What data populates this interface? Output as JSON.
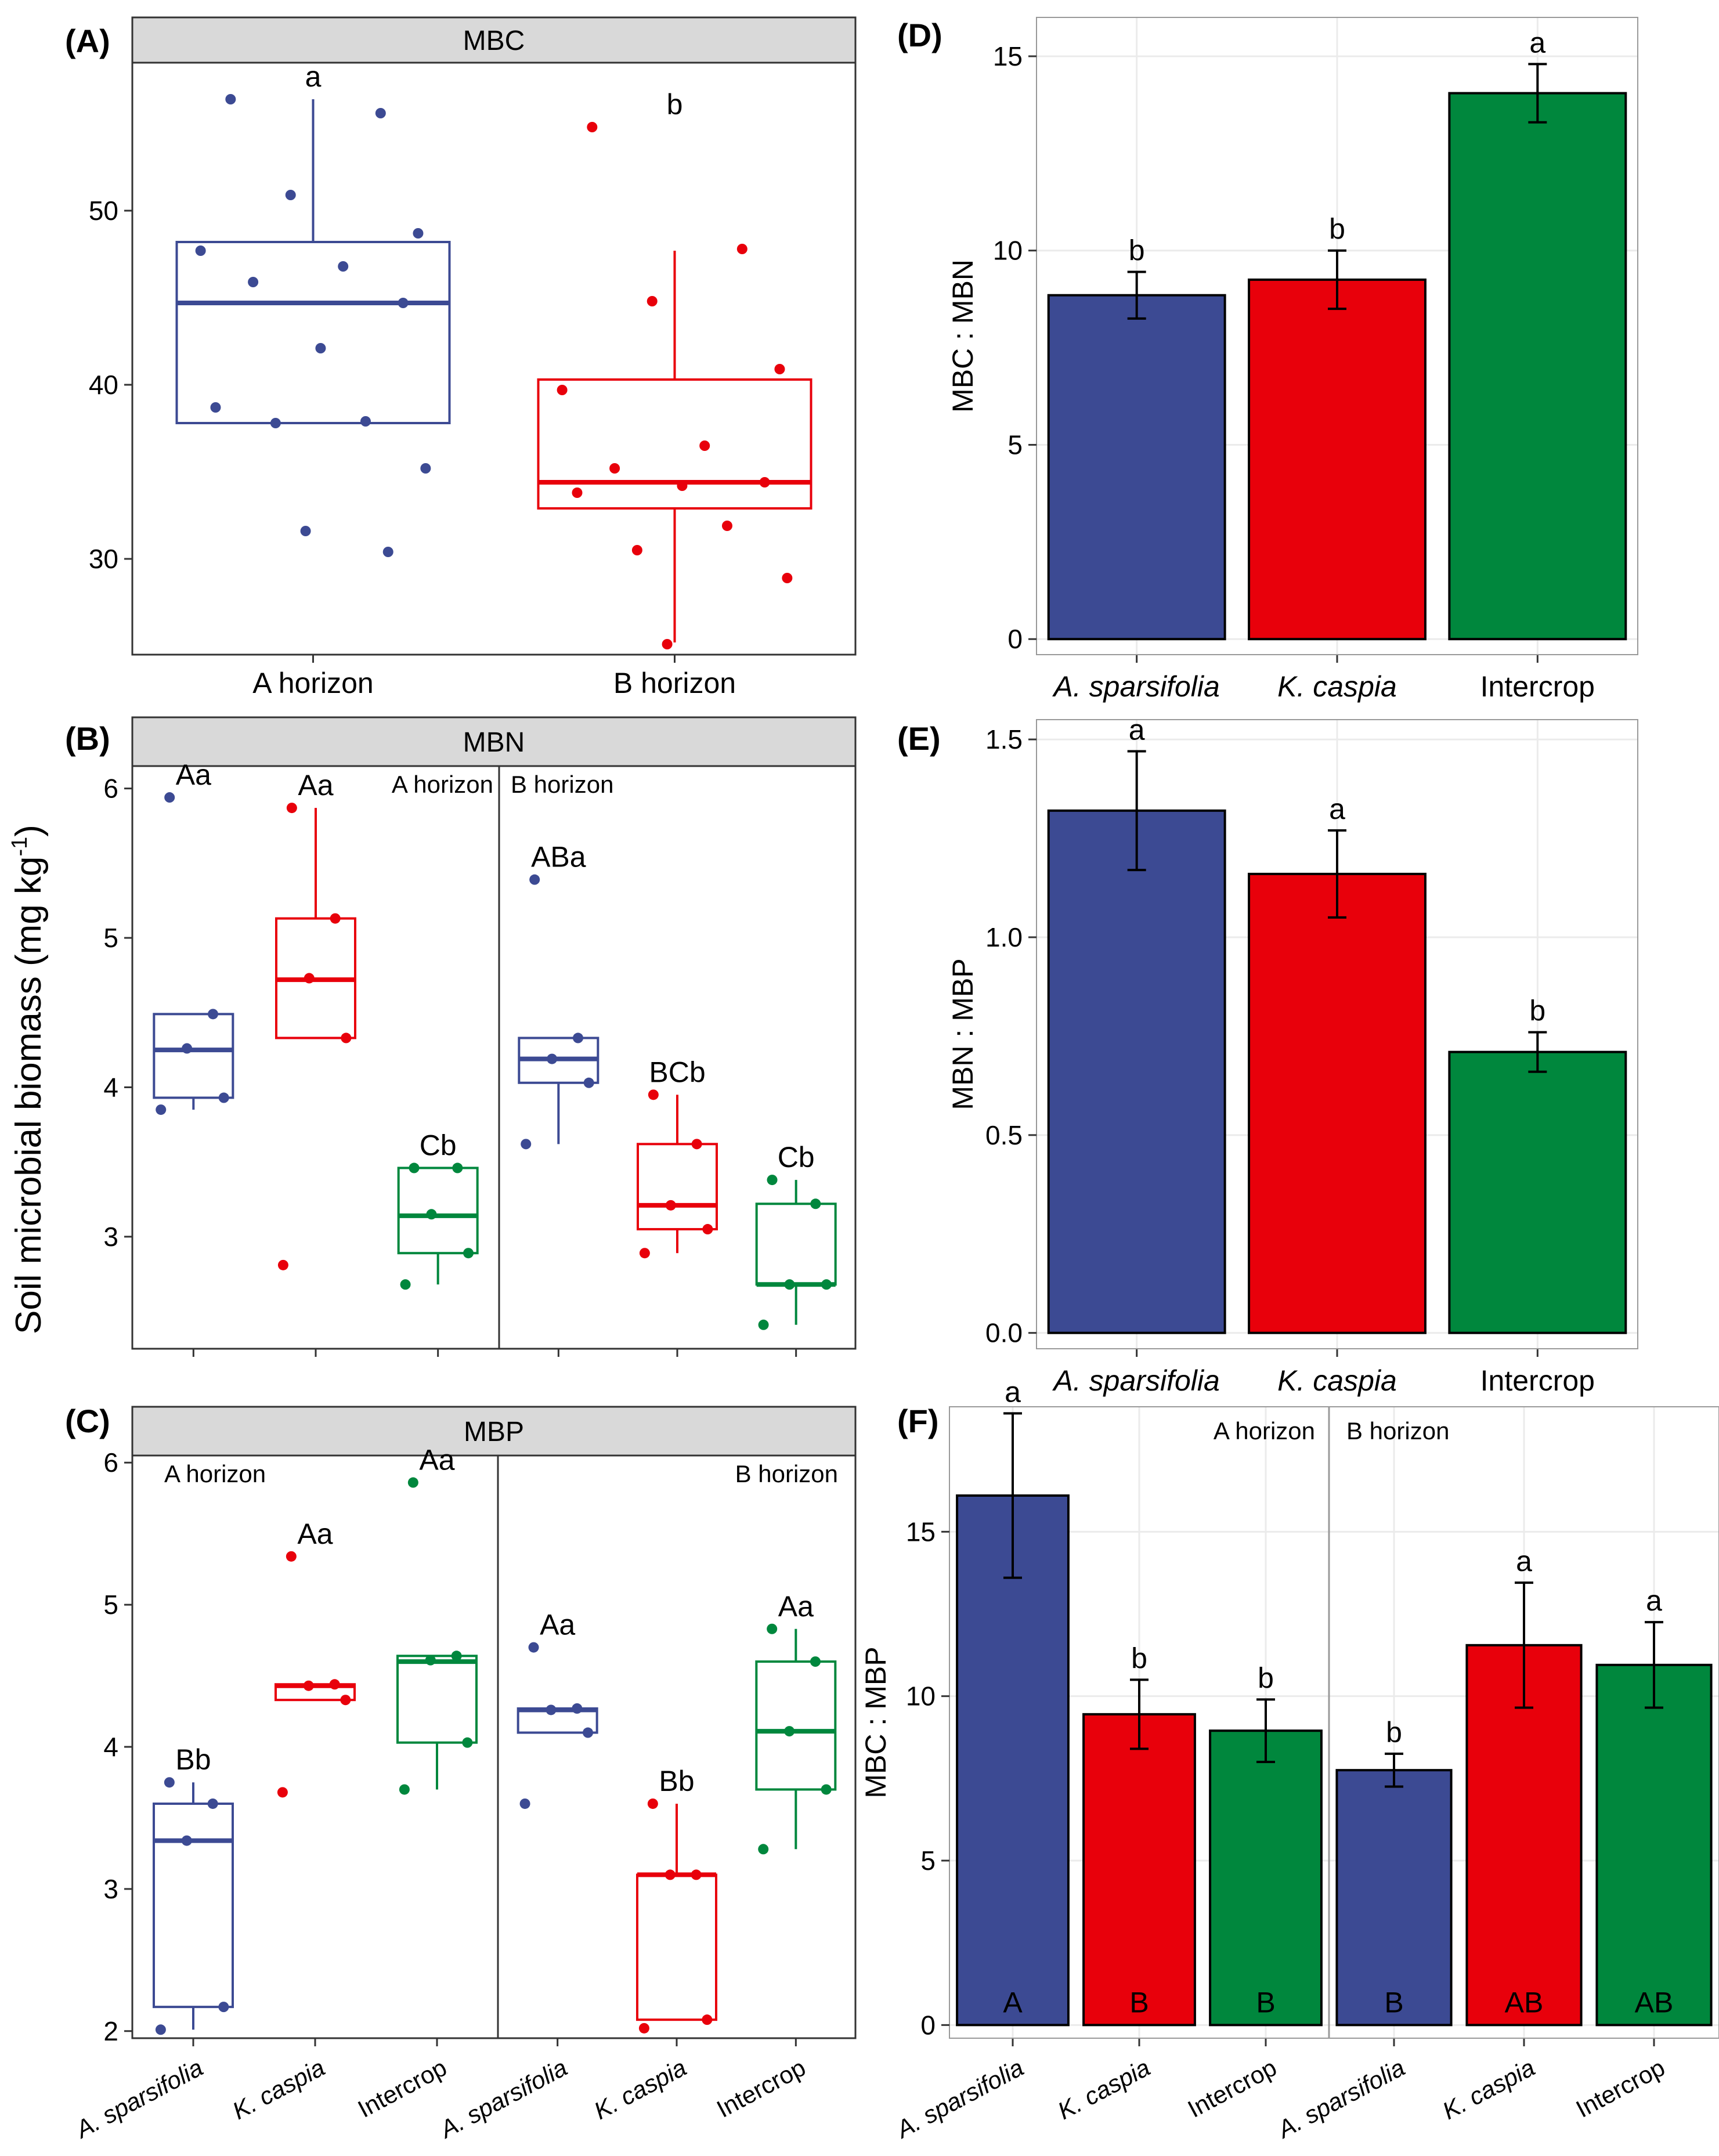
{
  "colors": {
    "blue": "#3C4A93",
    "red": "#E8000B",
    "green": "#00873D",
    "strip": "#D9D9D9",
    "grid": "#EBEBEB"
  },
  "shared_ylabel_main": "Soil microbial biomass (mg kg",
  "shared_ylabel_sup": "-1",
  "shared_ylabel_end": ")",
  "chart_data": [
    {
      "id": "A",
      "panel_tag": "(A)",
      "type": "box",
      "strip": "MBC",
      "ylim": [
        24.5,
        58.5
      ],
      "yticks": [
        30,
        40,
        50
      ],
      "categories": [
        "A horizon",
        "B horizon"
      ],
      "groups": [
        {
          "name": "A horizon",
          "color": "blue",
          "box": {
            "lower": 37.8,
            "q1": 37.8,
            "median": 44.7,
            "q3": 48.2,
            "upper": 56.4
          },
          "points": [
            56.4,
            55.6,
            50.9,
            48.7,
            47.7,
            46.8,
            45.9,
            44.7,
            42.1,
            38.7,
            37.9,
            37.8,
            35.2,
            31.6,
            30.4
          ],
          "label": "a"
        },
        {
          "name": "B horizon",
          "color": "red",
          "box": {
            "lower": 25.2,
            "q1": 32.9,
            "median": 34.4,
            "q3": 40.3,
            "upper": 47.7
          },
          "points": [
            54.8,
            47.8,
            44.8,
            40.9,
            39.7,
            36.5,
            35.2,
            34.4,
            34.2,
            33.8,
            31.9,
            30.5,
            28.9,
            25.1
          ],
          "label": "b"
        }
      ]
    },
    {
      "id": "B",
      "panel_tag": "(B)",
      "type": "box",
      "strip": "MBN",
      "ylim": [
        2.25,
        6.15
      ],
      "yticks": [
        3,
        4,
        5,
        6
      ],
      "facets": [
        {
          "label": "A horizon",
          "categories": [
            "A. sparsifolia",
            "K. caspia",
            "Intercrop"
          ],
          "groups": [
            {
              "name": "A. sparsifolia",
              "color": "blue",
              "box": {
                "lower": 3.85,
                "q1": 3.93,
                "median": 4.25,
                "q3": 4.49,
                "upper": 4.49
              },
              "points": [
                5.94,
                4.49,
                4.26,
                3.93,
                3.85
              ],
              "label": "Aa"
            },
            {
              "name": "K. caspia",
              "color": "red",
              "box": {
                "lower": 4.33,
                "q1": 4.33,
                "median": 4.72,
                "q3": 5.13,
                "upper": 5.87
              },
              "points": [
                5.87,
                5.13,
                4.73,
                4.33,
                2.81
              ],
              "label": "Aa"
            },
            {
              "name": "Intercrop",
              "color": "green",
              "box": {
                "lower": 2.68,
                "q1": 2.89,
                "median": 3.14,
                "q3": 3.46,
                "upper": 3.46
              },
              "points": [
                3.46,
                3.46,
                3.15,
                2.89,
                2.68
              ],
              "label": "Cb"
            }
          ]
        },
        {
          "label": "B horizon",
          "categories": [
            "A. sparsifolia",
            "K. caspia",
            "Intercrop"
          ],
          "groups": [
            {
              "name": "A. sparsifolia",
              "color": "blue",
              "box": {
                "lower": 3.62,
                "q1": 4.03,
                "median": 4.19,
                "q3": 4.33,
                "upper": 4.33
              },
              "points": [
                5.39,
                4.33,
                4.19,
                4.03,
                3.62
              ],
              "label": "ABa"
            },
            {
              "name": "K. caspia",
              "color": "red",
              "box": {
                "lower": 2.89,
                "q1": 3.05,
                "median": 3.21,
                "q3": 3.62,
                "upper": 3.95
              },
              "points": [
                3.95,
                3.62,
                3.21,
                3.05,
                2.89
              ],
              "label": "BCb"
            },
            {
              "name": "Intercrop",
              "color": "green",
              "box": {
                "lower": 2.41,
                "q1": 2.68,
                "median": 2.68,
                "q3": 3.22,
                "upper": 3.38
              },
              "points": [
                3.38,
                3.22,
                2.68,
                2.68,
                2.41
              ],
              "label": "Cb"
            }
          ]
        }
      ]
    },
    {
      "id": "C",
      "panel_tag": "(C)",
      "type": "box",
      "strip": "MBP",
      "ylim": [
        1.95,
        6.05
      ],
      "yticks": [
        2,
        3,
        4,
        5,
        6
      ],
      "facets": [
        {
          "label": "A horizon",
          "categories": [
            "A. sparsifolia",
            "K. caspia",
            "Intercrop"
          ],
          "groups": [
            {
              "name": "A. sparsifolia",
              "color": "blue",
              "box": {
                "lower": 2.01,
                "q1": 2.17,
                "median": 3.34,
                "q3": 3.6,
                "upper": 3.75
              },
              "points": [
                3.75,
                3.6,
                3.34,
                2.17,
                2.01
              ],
              "label": "Bb"
            },
            {
              "name": "K. caspia",
              "color": "red",
              "box": {
                "lower": 4.33,
                "q1": 4.33,
                "median": 4.43,
                "q3": 4.44,
                "upper": 4.44
              },
              "points": [
                5.34,
                4.44,
                4.43,
                4.33,
                3.68
              ],
              "label": "Aa"
            },
            {
              "name": "Intercrop",
              "color": "green",
              "box": {
                "lower": 3.7,
                "q1": 4.03,
                "median": 4.6,
                "q3": 4.64,
                "upper": 4.64
              },
              "points": [
                5.86,
                4.64,
                4.61,
                4.03,
                3.7
              ],
              "label": "Aa"
            }
          ]
        },
        {
          "label": "B horizon",
          "categories": [
            "A. sparsifolia",
            "K. caspia",
            "Intercrop"
          ],
          "groups": [
            {
              "name": "A. sparsifolia",
              "color": "blue",
              "box": {
                "lower": 4.1,
                "q1": 4.1,
                "median": 4.26,
                "q3": 4.27,
                "upper": 4.27
              },
              "points": [
                4.7,
                4.27,
                4.26,
                4.1,
                3.6
              ],
              "label": "Aa"
            },
            {
              "name": "K. caspia",
              "color": "red",
              "box": {
                "lower": 2.08,
                "q1": 2.08,
                "median": 3.1,
                "q3": 3.1,
                "upper": 3.6
              },
              "points": [
                3.6,
                3.1,
                3.1,
                2.08,
                2.02
              ],
              "label": "Bb"
            },
            {
              "name": "Intercrop",
              "color": "green",
              "box": {
                "lower": 3.28,
                "q1": 3.7,
                "median": 4.11,
                "q3": 4.6,
                "upper": 4.83
              },
              "points": [
                4.83,
                4.6,
                4.11,
                3.7,
                3.28
              ],
              "label": "Aa"
            }
          ]
        }
      ]
    },
    {
      "id": "D",
      "panel_tag": "(D)",
      "type": "bar",
      "ylabel": "MBC : MBN",
      "ylim": [
        -0.4,
        16.0
      ],
      "yticks": [
        0,
        5,
        10,
        15
      ],
      "categories": [
        "A. sparsifolia",
        "K. caspia",
        "Intercrop"
      ],
      "values": [
        8.85,
        9.25,
        14.05
      ],
      "err": [
        0.6,
        0.75,
        0.75
      ],
      "colors": [
        "blue",
        "red",
        "green"
      ],
      "labels": [
        "b",
        "b",
        "a"
      ]
    },
    {
      "id": "E",
      "panel_tag": "(E)",
      "type": "bar",
      "ylabel": "MBN : MBP",
      "ylim": [
        -0.04,
        1.55
      ],
      "yticks": [
        0.0,
        0.5,
        1.0,
        1.5
      ],
      "ytick_labels": [
        "0.0",
        "0.5",
        "1.0",
        "1.5"
      ],
      "categories": [
        "A. sparsifolia",
        "K. caspia",
        "Intercrop"
      ],
      "values": [
        1.32,
        1.16,
        0.71
      ],
      "err": [
        0.15,
        0.11,
        0.05
      ],
      "colors": [
        "blue",
        "red",
        "green"
      ],
      "labels": [
        "a",
        "a",
        "b"
      ]
    },
    {
      "id": "F",
      "panel_tag": "(F)",
      "type": "bar",
      "ylabel": "MBC : MBP",
      "ylim": [
        -0.4,
        18.8
      ],
      "yticks": [
        0,
        5,
        10,
        15
      ],
      "facets": [
        {
          "label": "A horizon",
          "categories": [
            "A. sparsifolia",
            "K. caspia",
            "Intercrop"
          ],
          "values": [
            16.1,
            9.45,
            8.95
          ],
          "err": [
            2.5,
            1.05,
            0.95
          ],
          "colors": [
            "blue",
            "red",
            "green"
          ],
          "labels": [
            "a",
            "b",
            "b"
          ],
          "inner_labels": [
            "A",
            "B",
            "B"
          ]
        },
        {
          "label": "B horizon",
          "categories": [
            "A. sparsifolia",
            "K. caspia",
            "Intercrop"
          ],
          "values": [
            7.75,
            11.55,
            10.95
          ],
          "err": [
            0.5,
            1.9,
            1.3
          ],
          "colors": [
            "blue",
            "red",
            "green"
          ],
          "labels": [
            "b",
            "a",
            "a"
          ],
          "inner_labels": [
            "B",
            "AB",
            "AB"
          ]
        }
      ]
    }
  ]
}
